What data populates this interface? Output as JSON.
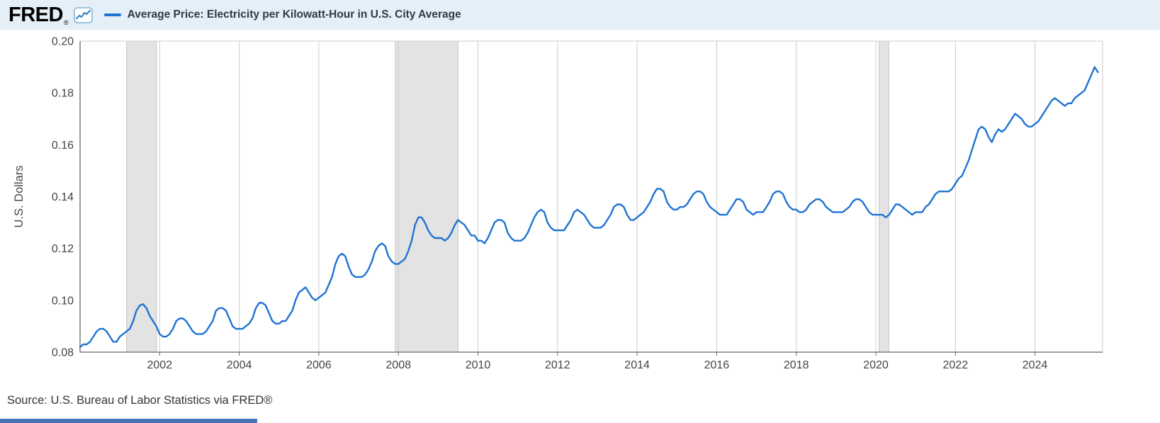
{
  "header": {
    "logo_text": "FRED",
    "registered_mark": "®",
    "legend_label": "Average Price: Electricity per Kilowatt-Hour in U.S. City Average"
  },
  "footer": {
    "source_text": "Source: U.S. Bureau of Labor Statistics via FRED®"
  },
  "colors": {
    "line": "#1f73d2",
    "header_bg": "#e4eff8",
    "recession_band": "#e3e3e3",
    "recession_band_edge": "#c4c6c8",
    "gridline": "#cccccc",
    "axis": "#666666",
    "tick_label": "#444444",
    "plot_border": "#cccccc",
    "bottom_bar": "#4673b8"
  },
  "chart_data": {
    "type": "line",
    "title": "Average Price: Electricity per Kilowatt-Hour in U.S. City Average",
    "ylabel": "U.S. Dollars",
    "xlabel": "",
    "legend_position": "top",
    "grid": "vertical-only",
    "frequency": "monthly",
    "start_date": "2000-01",
    "end_date": "2025-08",
    "x_start": 2000.0,
    "x_end": 2025.7,
    "ylim": [
      0.08,
      0.2
    ],
    "y_ticks": [
      0.08,
      0.1,
      0.12,
      0.14,
      0.16,
      0.18,
      0.2
    ],
    "x_ticks": [
      2002,
      2004,
      2006,
      2008,
      2010,
      2012,
      2014,
      2016,
      2018,
      2020,
      2022,
      2024
    ],
    "recession_bands": [
      [
        2001.17,
        2001.92
      ],
      [
        2007.92,
        2009.5
      ],
      [
        2020.08,
        2020.33
      ]
    ],
    "values": [
      0.082,
      0.083,
      0.083,
      0.084,
      0.086,
      0.088,
      0.089,
      0.089,
      0.088,
      0.086,
      0.084,
      0.084,
      0.086,
      0.087,
      0.088,
      0.089,
      0.092,
      0.096,
      0.098,
      0.0985,
      0.097,
      0.094,
      0.092,
      0.09,
      0.087,
      0.086,
      0.086,
      0.087,
      0.089,
      0.092,
      0.093,
      0.093,
      0.092,
      0.09,
      0.088,
      0.087,
      0.087,
      0.087,
      0.088,
      0.09,
      0.092,
      0.096,
      0.097,
      0.097,
      0.096,
      0.093,
      0.09,
      0.089,
      0.089,
      0.089,
      0.09,
      0.091,
      0.093,
      0.097,
      0.099,
      0.099,
      0.098,
      0.095,
      0.092,
      0.091,
      0.091,
      0.092,
      0.092,
      0.094,
      0.096,
      0.1,
      0.103,
      0.104,
      0.105,
      0.103,
      0.101,
      0.1,
      0.101,
      0.102,
      0.103,
      0.106,
      0.109,
      0.114,
      0.117,
      0.118,
      0.117,
      0.113,
      0.11,
      0.109,
      0.109,
      0.109,
      0.11,
      0.112,
      0.115,
      0.119,
      0.121,
      0.122,
      0.121,
      0.117,
      0.115,
      0.114,
      0.114,
      0.115,
      0.116,
      0.119,
      0.123,
      0.129,
      0.132,
      0.132,
      0.13,
      0.127,
      0.125,
      0.124,
      0.124,
      0.124,
      0.123,
      0.124,
      0.126,
      0.129,
      0.131,
      0.13,
      0.129,
      0.127,
      0.125,
      0.125,
      0.123,
      0.123,
      0.122,
      0.124,
      0.127,
      0.13,
      0.131,
      0.131,
      0.13,
      0.126,
      0.124,
      0.123,
      0.123,
      0.123,
      0.124,
      0.126,
      0.129,
      0.132,
      0.134,
      0.135,
      0.134,
      0.13,
      0.128,
      0.127,
      0.127,
      0.127,
      0.127,
      0.129,
      0.131,
      0.134,
      0.135,
      0.134,
      0.133,
      0.131,
      0.129,
      0.128,
      0.128,
      0.128,
      0.129,
      0.131,
      0.133,
      0.136,
      0.137,
      0.137,
      0.136,
      0.133,
      0.131,
      0.131,
      0.132,
      0.133,
      0.134,
      0.136,
      0.138,
      0.141,
      0.143,
      0.143,
      0.142,
      0.138,
      0.136,
      0.135,
      0.135,
      0.136,
      0.136,
      0.137,
      0.139,
      0.141,
      0.142,
      0.142,
      0.141,
      0.138,
      0.136,
      0.135,
      0.134,
      0.133,
      0.133,
      0.133,
      0.135,
      0.137,
      0.139,
      0.139,
      0.138,
      0.135,
      0.134,
      0.133,
      0.134,
      0.134,
      0.134,
      0.136,
      0.138,
      0.141,
      0.142,
      0.142,
      0.141,
      0.138,
      0.136,
      0.135,
      0.135,
      0.134,
      0.134,
      0.135,
      0.137,
      0.138,
      0.139,
      0.139,
      0.138,
      0.136,
      0.135,
      0.134,
      0.134,
      0.134,
      0.134,
      0.135,
      0.136,
      0.138,
      0.139,
      0.139,
      0.138,
      0.136,
      0.134,
      0.133,
      0.133,
      0.133,
      0.133,
      0.132,
      0.133,
      0.135,
      0.137,
      0.137,
      0.136,
      0.135,
      0.134,
      0.133,
      0.134,
      0.134,
      0.134,
      0.136,
      0.137,
      0.139,
      0.141,
      0.142,
      0.142,
      0.142,
      0.142,
      0.143,
      0.145,
      0.147,
      0.148,
      0.151,
      0.154,
      0.158,
      0.162,
      0.166,
      0.167,
      0.166,
      0.163,
      0.161,
      0.164,
      0.166,
      0.165,
      0.166,
      0.168,
      0.17,
      0.172,
      0.171,
      0.17,
      0.168,
      0.167,
      0.167,
      0.168,
      0.169,
      0.171,
      0.173,
      0.175,
      0.177,
      0.178,
      0.177,
      0.176,
      0.175,
      0.176,
      0.176,
      0.178,
      0.179,
      0.18,
      0.181,
      0.184,
      0.187,
      0.19,
      0.188
    ]
  }
}
